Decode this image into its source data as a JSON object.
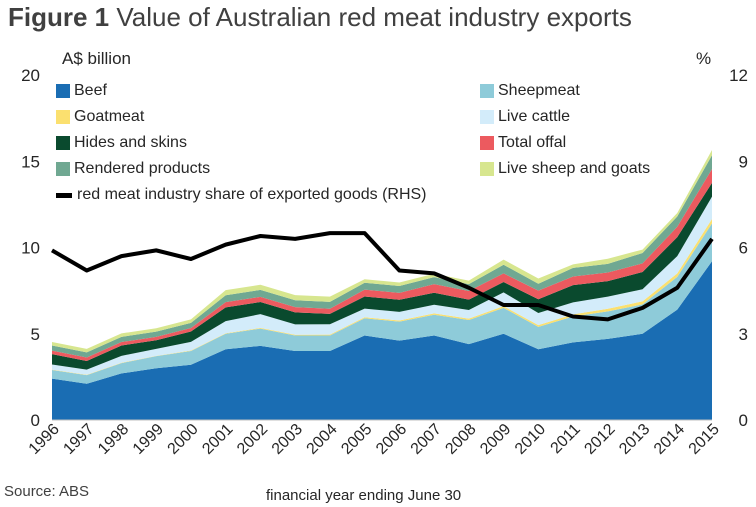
{
  "figure": {
    "title_bold": "Figure 1",
    "title_rest": "Value of Australian red meat industry exports",
    "source": "Source: ABS"
  },
  "chart_data": {
    "type": "area",
    "title": "Figure 1 Value of Australian red meat industry exports",
    "xlabel": "financial year ending June 30",
    "ylabel": "A$ billion",
    "y2label": "%",
    "x": [
      "1996",
      "1997",
      "1998",
      "1999",
      "2000",
      "2001",
      "2002",
      "2003",
      "2004",
      "2005",
      "2006",
      "2007",
      "2008",
      "2009",
      "2010",
      "2011",
      "2012",
      "2013",
      "2014",
      "2015"
    ],
    "ylim": [
      0,
      20
    ],
    "y2lim": [
      0,
      12
    ],
    "yticks": [
      0,
      5,
      10,
      15,
      20
    ],
    "y2ticks": [
      0,
      3,
      6,
      9,
      12
    ],
    "stacked": true,
    "series": [
      {
        "name": "Beef",
        "color": "#1a6db3",
        "values": [
          2.4,
          2.1,
          2.7,
          3.0,
          3.2,
          4.1,
          4.3,
          4.0,
          4.0,
          4.9,
          4.6,
          4.9,
          4.4,
          5.0,
          4.1,
          4.5,
          4.7,
          5.0,
          6.4,
          9.2
        ]
      },
      {
        "name": "Sheepmeat",
        "color": "#8ecbd9",
        "values": [
          0.5,
          0.5,
          0.6,
          0.7,
          0.8,
          0.9,
          1.0,
          0.9,
          0.9,
          1.0,
          1.1,
          1.2,
          1.4,
          1.5,
          1.3,
          1.5,
          1.6,
          1.7,
          1.9,
          2.2
        ]
      },
      {
        "name": "Goatmeat",
        "color": "#fbe06f",
        "values": [
          0.02,
          0.02,
          0.02,
          0.02,
          0.03,
          0.03,
          0.04,
          0.04,
          0.05,
          0.06,
          0.07,
          0.08,
          0.08,
          0.1,
          0.1,
          0.12,
          0.15,
          0.18,
          0.2,
          0.25
        ]
      },
      {
        "name": "Live cattle",
        "color": "#d3ecfa",
        "values": [
          0.3,
          0.3,
          0.4,
          0.4,
          0.5,
          0.7,
          0.8,
          0.6,
          0.6,
          0.5,
          0.5,
          0.5,
          0.5,
          0.8,
          0.7,
          0.7,
          0.7,
          0.7,
          1.0,
          1.3
        ]
      },
      {
        "name": "Hides and skins",
        "color": "#0a4a2e",
        "values": [
          0.6,
          0.5,
          0.6,
          0.5,
          0.6,
          0.8,
          0.7,
          0.7,
          0.6,
          0.7,
          0.7,
          0.7,
          0.6,
          0.6,
          0.8,
          1.0,
          0.9,
          1.0,
          1.1,
          0.8
        ]
      },
      {
        "name": "Total offal",
        "color": "#ec5a5f",
        "values": [
          0.2,
          0.2,
          0.2,
          0.2,
          0.2,
          0.3,
          0.3,
          0.3,
          0.3,
          0.4,
          0.4,
          0.5,
          0.5,
          0.5,
          0.5,
          0.5,
          0.5,
          0.5,
          0.6,
          0.8
        ]
      },
      {
        "name": "Rendered products",
        "color": "#70a892",
        "values": [
          0.3,
          0.3,
          0.3,
          0.3,
          0.3,
          0.4,
          0.4,
          0.4,
          0.4,
          0.4,
          0.4,
          0.4,
          0.4,
          0.5,
          0.4,
          0.5,
          0.5,
          0.6,
          0.6,
          0.8
        ]
      },
      {
        "name": "Live sheep and goats",
        "color": "#d7e68f",
        "values": [
          0.2,
          0.2,
          0.2,
          0.2,
          0.2,
          0.3,
          0.3,
          0.3,
          0.3,
          0.2,
          0.2,
          0.2,
          0.2,
          0.3,
          0.3,
          0.2,
          0.3,
          0.2,
          0.2,
          0.3
        ]
      }
    ],
    "line_series": {
      "name": "red meat industry share of exported goods (RHS)",
      "color": "#000000",
      "axis": "right",
      "values": [
        5.9,
        5.2,
        5.7,
        5.9,
        5.6,
        6.1,
        6.4,
        6.3,
        6.5,
        6.5,
        5.2,
        5.1,
        4.6,
        4.0,
        4.0,
        3.6,
        3.5,
        3.9,
        4.6,
        6.3
      ]
    },
    "legend_position": "top, two columns"
  }
}
